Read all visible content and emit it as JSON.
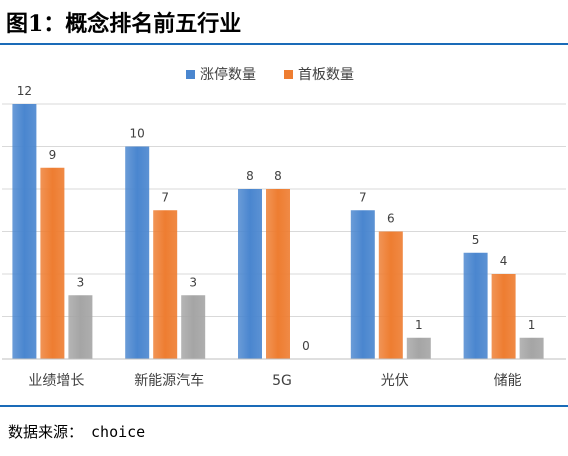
{
  "header": {
    "title": "图1：概念排名前五行业"
  },
  "footer": {
    "source_label": "数据来源：",
    "source_value": "choice"
  },
  "colors": {
    "rule": "#1a6bb8",
    "grid": "#d9d9d9"
  },
  "chart_data": {
    "type": "bar",
    "title": "",
    "xlabel": "",
    "ylabel": "",
    "categories": [
      "业绩增长",
      "新能源汽车",
      "5G",
      "光伏",
      "储能"
    ],
    "series": [
      {
        "name": "涨停数量",
        "values": [
          12,
          10,
          8,
          7,
          5
        ],
        "color": "#4a86cf"
      },
      {
        "name": "首板数量",
        "values": [
          9,
          7,
          8,
          6,
          4
        ],
        "color": "#ee7d31"
      },
      {
        "name": "",
        "values": [
          3,
          3,
          0,
          1,
          1
        ],
        "color": "#a5a5a5"
      }
    ],
    "ylim": [
      0,
      12
    ],
    "grid": true,
    "legend": "top-center",
    "data_labels": true
  }
}
